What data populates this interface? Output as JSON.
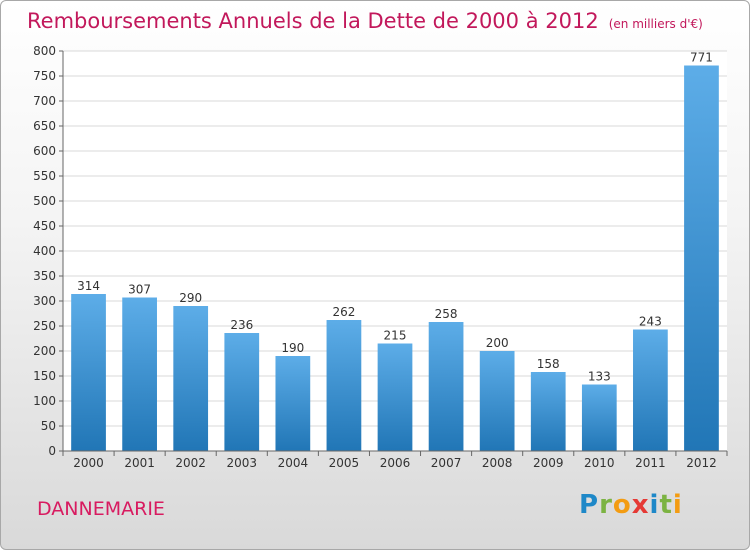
{
  "title": "Remboursements Annuels de la Dette de 2000 à 2012",
  "unit": "(en milliers d'€)",
  "place": "DANNEMARIE",
  "logo": {
    "text": "Proxiti",
    "letters": [
      {
        "char": "P",
        "color": "#1e88c8"
      },
      {
        "char": "r",
        "color": "#7cb342"
      },
      {
        "char": "o",
        "color": "#f39c12"
      },
      {
        "char": "x",
        "color": "#e53935"
      },
      {
        "char": "i",
        "color": "#1e88c8"
      },
      {
        "char": "t",
        "color": "#7cb342"
      },
      {
        "char": "i",
        "color": "#f39c12"
      }
    ]
  },
  "chart_data": {
    "type": "bar",
    "title": "Remboursements Annuels de la Dette de 2000 à 2012",
    "categories": [
      "2000",
      "2001",
      "2002",
      "2003",
      "2004",
      "2005",
      "2006",
      "2007",
      "2008",
      "2009",
      "2010",
      "2011",
      "2012"
    ],
    "values": [
      314,
      307,
      290,
      236,
      190,
      262,
      215,
      258,
      200,
      158,
      133,
      243,
      771
    ],
    "ylim": [
      0,
      800
    ],
    "yticks": [
      0,
      50,
      100,
      150,
      200,
      250,
      300,
      350,
      400,
      450,
      500,
      550,
      600,
      650,
      700,
      750,
      800
    ],
    "grid": true,
    "bar_color_top": "#5dade8",
    "bar_color_bottom": "#2176b6"
  }
}
